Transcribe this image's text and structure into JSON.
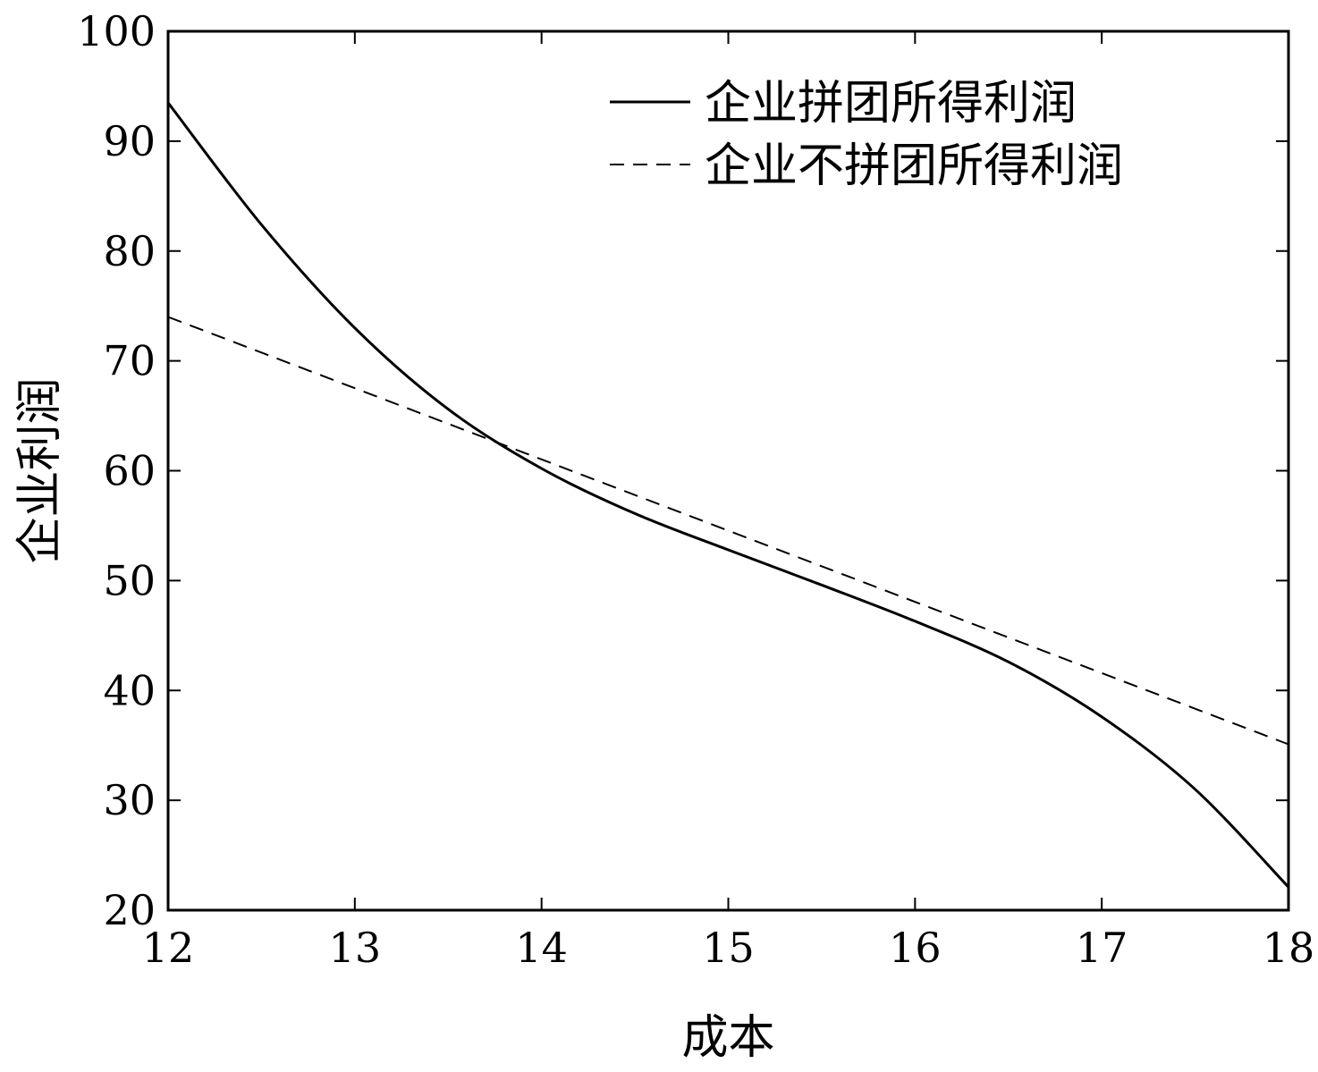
{
  "chart_data": {
    "type": "line",
    "title": "",
    "xlabel": "成本",
    "ylabel": "企业利润",
    "xlim": [
      12,
      18
    ],
    "ylim": [
      20,
      100
    ],
    "xticks": [
      12,
      13,
      14,
      15,
      16,
      17,
      18
    ],
    "yticks": [
      20,
      30,
      40,
      50,
      60,
      70,
      80,
      90,
      100
    ],
    "grid": false,
    "legend_position": "top-right",
    "series": [
      {
        "name": "企业拼团所得利润",
        "style": "solid",
        "x": [
          12,
          12.5,
          13,
          13.5,
          14,
          14.5,
          15,
          15.5,
          16,
          16.5,
          17,
          17.5,
          18
        ],
        "y": [
          93.5,
          82.4,
          73.0,
          65.6,
          60.2,
          56.1,
          52.8,
          49.6,
          46.3,
          42.6,
          37.6,
          31.0,
          22.1
        ]
      },
      {
        "name": "企业不拼团所得利润",
        "style": "dashed",
        "x": [
          12,
          18
        ],
        "y": [
          74.0,
          35.1
        ]
      }
    ]
  },
  "colors": {
    "line": "#000000",
    "background": "#ffffff"
  }
}
